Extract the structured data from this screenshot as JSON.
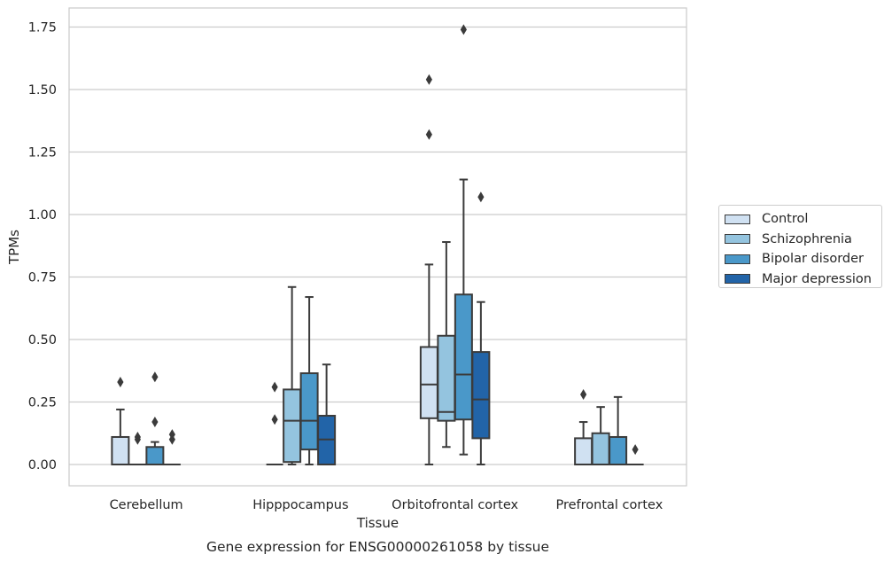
{
  "chart_data": {
    "type": "box",
    "xlabel": "Tissue",
    "ylabel": "TPMs",
    "caption": "Gene expression for ENSG00000261058 by tissue",
    "ylim": [
      -0.08,
      1.83
    ],
    "yticks": [
      0.0,
      0.25,
      0.5,
      0.75,
      1.0,
      1.25,
      1.5,
      1.75
    ],
    "ytick_labels": [
      "0.00",
      "0.25",
      "0.50",
      "0.75",
      "1.00",
      "1.25",
      "1.50",
      "1.75"
    ],
    "grid": "horizontal",
    "legend_position": "right",
    "categories": [
      "Cerebellum",
      "Hipppocampus",
      "Orbitofrontal cortex",
      "Prefrontal cortex"
    ],
    "series": [
      {
        "name": "Control",
        "color": "#d0e1f2",
        "boxes": [
          {
            "whislo": 0.0,
            "q1": 0.0,
            "med": 0.0,
            "q3": 0.11,
            "whishi": 0.22,
            "fliers": [
              0.33
            ]
          },
          {
            "whislo": 0.0,
            "q1": 0.0,
            "med": 0.0,
            "q3": 0.0,
            "whishi": 0.0,
            "fliers": [
              0.18,
              0.31
            ]
          },
          {
            "whislo": 0.0,
            "q1": 0.185,
            "med": 0.32,
            "q3": 0.47,
            "whishi": 0.8,
            "fliers": [
              1.32,
              1.54
            ]
          },
          {
            "whislo": 0.0,
            "q1": 0.0,
            "med": 0.0,
            "q3": 0.105,
            "whishi": 0.17,
            "fliers": [
              0.28
            ]
          }
        ]
      },
      {
        "name": "Schizophrenia",
        "color": "#94c4df",
        "boxes": [
          {
            "whislo": 0.0,
            "q1": 0.0,
            "med": 0.0,
            "q3": 0.0,
            "whishi": 0.0,
            "fliers": [
              0.1,
              0.11
            ]
          },
          {
            "whislo": 0.0,
            "q1": 0.01,
            "med": 0.175,
            "q3": 0.3,
            "whishi": 0.71,
            "fliers": []
          },
          {
            "whislo": 0.07,
            "q1": 0.175,
            "med": 0.21,
            "q3": 0.515,
            "whishi": 0.89,
            "fliers": []
          },
          {
            "whislo": 0.0,
            "q1": 0.0,
            "med": 0.0,
            "q3": 0.125,
            "whishi": 0.23,
            "fliers": []
          }
        ]
      },
      {
        "name": "Bipolar disorder",
        "color": "#4a98c9",
        "boxes": [
          {
            "whislo": 0.0,
            "q1": 0.0,
            "med": 0.0,
            "q3": 0.07,
            "whishi": 0.09,
            "fliers": [
              0.17,
              0.35
            ]
          },
          {
            "whislo": 0.0,
            "q1": 0.06,
            "med": 0.175,
            "q3": 0.365,
            "whishi": 0.67,
            "fliers": []
          },
          {
            "whislo": 0.04,
            "q1": 0.18,
            "med": 0.36,
            "q3": 0.68,
            "whishi": 1.14,
            "fliers": [
              1.74
            ]
          },
          {
            "whislo": 0.0,
            "q1": 0.0,
            "med": 0.0,
            "q3": 0.11,
            "whishi": 0.27,
            "fliers": []
          }
        ]
      },
      {
        "name": "Major depression",
        "color": "#2264a8",
        "boxes": [
          {
            "whislo": 0.0,
            "q1": 0.0,
            "med": 0.0,
            "q3": 0.0,
            "whishi": 0.0,
            "fliers": [
              0.1,
              0.12
            ]
          },
          {
            "whislo": 0.0,
            "q1": 0.0,
            "med": 0.1,
            "q3": 0.195,
            "whishi": 0.4,
            "fliers": []
          },
          {
            "whislo": 0.0,
            "q1": 0.105,
            "med": 0.26,
            "q3": 0.45,
            "whishi": 0.65,
            "fliers": [
              1.07
            ]
          },
          {
            "whislo": 0.0,
            "q1": 0.0,
            "med": 0.0,
            "q3": 0.0,
            "whishi": 0.0,
            "fliers": [
              0.06
            ]
          }
        ]
      }
    ]
  }
}
